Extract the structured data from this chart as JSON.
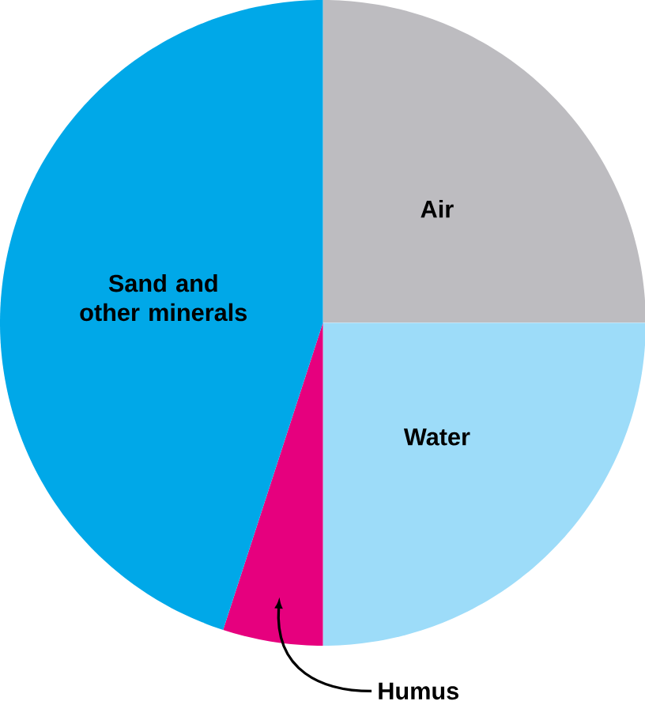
{
  "chart_data": {
    "type": "pie",
    "categories": [
      "Air",
      "Water",
      "Humus",
      "Sand and other minerals"
    ],
    "values": [
      25,
      25,
      5,
      45
    ],
    "colors": [
      "#bdbcc0",
      "#9ddcf9",
      "#e6007e",
      "#00a8e8"
    ]
  }
}
